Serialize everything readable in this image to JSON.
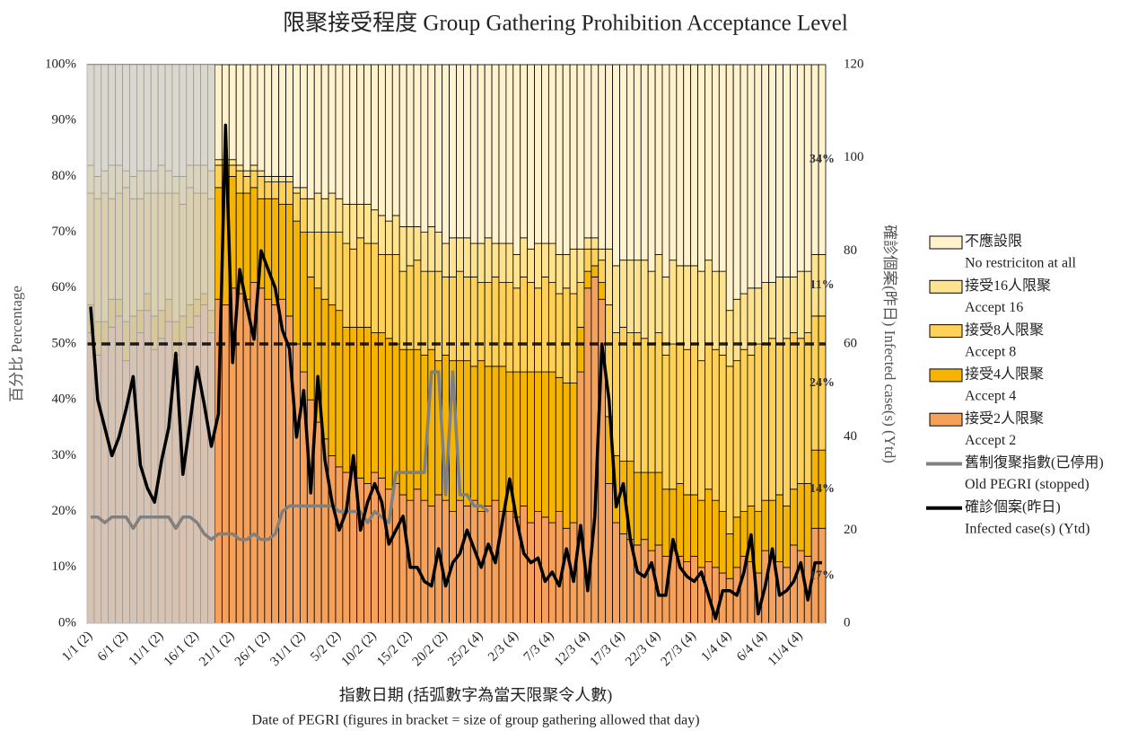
{
  "chart_data": {
    "type": "bar",
    "stacked": true,
    "title": "限聚接受程度 Group Gathering Prohibition Acceptance Level",
    "x_label": "指數日期 (括弧數字為當天限聚令人數)",
    "x_label_en": "Date of PEGRI (figures in bracket = size of group gathering allowed that day)",
    "y_label": "百分比 Percentage",
    "y2_label": "確診個案(昨日) Infected case(s) (Ytd)",
    "categories": [
      "1/1 (2)",
      null,
      null,
      null,
      null,
      "6/1 (2)",
      null,
      null,
      null,
      null,
      "11/1 (2)",
      null,
      null,
      null,
      null,
      "16/1 (2)",
      null,
      null,
      null,
      null,
      "21/1 (2)",
      null,
      null,
      null,
      null,
      "26/1 (2)",
      null,
      null,
      null,
      null,
      "31/1 (2)",
      null,
      null,
      null,
      null,
      "5/2 (2)",
      null,
      null,
      null,
      null,
      "10/2 (2)",
      null,
      null,
      null,
      null,
      "15/2 (2)",
      null,
      null,
      null,
      null,
      "20/2 (2)",
      null,
      null,
      null,
      null,
      "25/2 (4)",
      null,
      null,
      null,
      null,
      "2/3 (4)",
      null,
      null,
      null,
      null,
      "7/3 (4)",
      null,
      null,
      null,
      null,
      "12/3 (4)",
      null,
      null,
      null,
      null,
      "17/3 (4)",
      null,
      null,
      null,
      null,
      "22/3 (4)",
      null,
      null,
      null,
      null,
      "27/3 (4)",
      null,
      null,
      null,
      null,
      "1/4 (4)",
      null,
      null,
      null,
      null,
      "6/4 (4)",
      null,
      null,
      null,
      null,
      "11/4 (4)",
      null,
      null,
      null
    ],
    "ylim": [
      0,
      100
    ],
    "yticks": [
      {
        "value": 0,
        "label": "0%"
      },
      {
        "value": 10,
        "label": "10%"
      },
      {
        "value": 20,
        "label": "20%"
      },
      {
        "value": 30,
        "label": "30%"
      },
      {
        "value": 40,
        "label": "40%"
      },
      {
        "value": 50,
        "label": "50%"
      },
      {
        "value": 60,
        "label": "60%"
      },
      {
        "value": 70,
        "label": "70%"
      },
      {
        "value": 80,
        "label": "80%"
      },
      {
        "value": 90,
        "label": "90%"
      },
      {
        "value": 100,
        "label": "100%"
      }
    ],
    "y2lim": [
      0,
      120
    ],
    "y2ticks": [
      0,
      20,
      40,
      60,
      80,
      100,
      120
    ],
    "grid": false,
    "reference_line": 50,
    "shaded_bars": 18,
    "legend": "right",
    "series": [
      {
        "name": "接受2人限聚",
        "name_en": "Accept  2",
        "type": "bar",
        "color": "#f5a15c",
        "end_label": "17%",
        "values": [
          52,
          48,
          50,
          53,
          55,
          47,
          50,
          52,
          56,
          49,
          51,
          54,
          48,
          50,
          53,
          55,
          57,
          52,
          58,
          57,
          60,
          59,
          58,
          61,
          60,
          58,
          57,
          58,
          55,
          50,
          45,
          40,
          36,
          33,
          30,
          28,
          27,
          28,
          26,
          25,
          27,
          26,
          24,
          25,
          23,
          22,
          24,
          22,
          21,
          23,
          22,
          20,
          22,
          21,
          22,
          20,
          21,
          22,
          20,
          20,
          19,
          21,
          18,
          20,
          19,
          18,
          20,
          17,
          18,
          45,
          60,
          62,
          58,
          25,
          18,
          16,
          15,
          14,
          15,
          13,
          14,
          12,
          13,
          12,
          11,
          12,
          10,
          11,
          10,
          9,
          8,
          10,
          12,
          11,
          9,
          13,
          12,
          11,
          10,
          14,
          13,
          12,
          17,
          17
        ]
      },
      {
        "name": "接受4人限聚",
        "name_en": "Accept  4",
        "type": "bar",
        "color": "#f5b400",
        "end_label": "14%",
        "values": [
          5,
          6,
          4,
          5,
          3,
          7,
          5,
          4,
          3,
          6,
          5,
          4,
          6,
          5,
          4,
          3,
          2,
          4,
          20,
          22,
          20,
          18,
          19,
          17,
          16,
          18,
          19,
          17,
          20,
          22,
          25,
          22,
          24,
          25,
          27,
          28,
          26,
          25,
          27,
          28,
          25,
          26,
          27,
          25,
          26,
          27,
          25,
          26,
          28,
          24,
          26,
          27,
          25,
          26,
          24,
          27,
          25,
          24,
          26,
          25,
          26,
          24,
          27,
          25,
          26,
          27,
          24,
          26,
          25,
          8,
          3,
          2,
          3,
          12,
          12,
          13,
          14,
          13,
          12,
          14,
          13,
          12,
          11,
          13,
          12,
          11,
          12,
          13,
          12,
          11,
          8,
          9,
          8,
          10,
          11,
          9,
          10,
          12,
          11,
          10,
          12,
          13,
          14,
          14
        ]
      },
      {
        "name": "接受8人限聚",
        "name_en": "Accept  8",
        "type": "bar",
        "color": "#ffd257",
        "end_label": "24%",
        "values": [
          20,
          22,
          23,
          18,
          19,
          24,
          21,
          20,
          18,
          22,
          21,
          19,
          23,
          20,
          21,
          19,
          18,
          20,
          4,
          3,
          2,
          4,
          3,
          3,
          4,
          3,
          3,
          4,
          4,
          5,
          6,
          8,
          10,
          12,
          13,
          14,
          15,
          14,
          16,
          15,
          16,
          14,
          15,
          16,
          14,
          15,
          16,
          15,
          14,
          16,
          14,
          15,
          16,
          15,
          16,
          14,
          15,
          16,
          15,
          16,
          15,
          17,
          16,
          15,
          17,
          16,
          15,
          17,
          16,
          8,
          4,
          3,
          4,
          20,
          22,
          24,
          23,
          25,
          24,
          23,
          25,
          24,
          26,
          25,
          26,
          27,
          25,
          26,
          27,
          28,
          30,
          28,
          29,
          27,
          30,
          28,
          29,
          27,
          30,
          28,
          26,
          27,
          24,
          24
        ]
      },
      {
        "name": "接受16人限聚",
        "name_en": "Accept  16",
        "type": "bar",
        "color": "#ffe38f",
        "end_label": "11%",
        "values": [
          5,
          4,
          4,
          6,
          5,
          3,
          4,
          5,
          4,
          4,
          5,
          4,
          3,
          5,
          4,
          5,
          5,
          5,
          1,
          1,
          1,
          1,
          1,
          1,
          1,
          1,
          1,
          1,
          1,
          1,
          2,
          6,
          7,
          6,
          7,
          6,
          7,
          8,
          6,
          7,
          6,
          7,
          6,
          7,
          8,
          7,
          6,
          7,
          8,
          7,
          6,
          7,
          6,
          7,
          6,
          7,
          8,
          6,
          7,
          7,
          6,
          7,
          6,
          8,
          6,
          7,
          7,
          6,
          8,
          6,
          2,
          2,
          2,
          10,
          12,
          12,
          13,
          13,
          14,
          13,
          14,
          14,
          15,
          14,
          15,
          14,
          16,
          15,
          14,
          15,
          10,
          11,
          10,
          12,
          10,
          11,
          10,
          12,
          11,
          10,
          12,
          11,
          11,
          11
        ]
      },
      {
        "name": "不應設限",
        "name_en": "No restriciton at all",
        "type": "bar",
        "color": "#fff2cc",
        "end_label": "34%",
        "values": [
          18,
          20,
          19,
          18,
          18,
          19,
          20,
          19,
          19,
          19,
          18,
          19,
          20,
          20,
          18,
          18,
          18,
          19,
          17,
          17,
          17,
          18,
          19,
          18,
          19,
          20,
          20,
          20,
          20,
          22,
          22,
          24,
          23,
          24,
          23,
          24,
          25,
          25,
          25,
          25,
          26,
          27,
          28,
          27,
          29,
          29,
          29,
          30,
          29,
          30,
          32,
          31,
          31,
          31,
          32,
          32,
          31,
          32,
          32,
          32,
          34,
          31,
          33,
          32,
          32,
          32,
          34,
          34,
          33,
          33,
          31,
          31,
          33,
          33,
          36,
          35,
          35,
          35,
          35,
          37,
          34,
          38,
          35,
          36,
          36,
          36,
          37,
          35,
          37,
          37,
          44,
          42,
          41,
          40,
          40,
          39,
          39,
          38,
          38,
          38,
          37,
          37,
          34,
          34
        ]
      },
      {
        "name": "舊制復聚指數(已停用)",
        "name_en": "Old PEGRI (stopped)",
        "type": "line",
        "color": "#808080",
        "values": [
          19,
          19,
          18,
          19,
          19,
          19,
          17,
          19,
          19,
          19,
          19,
          19,
          17,
          19,
          19,
          18,
          16,
          15,
          16,
          16,
          16,
          15,
          15,
          16,
          15,
          15,
          16,
          20,
          21,
          21,
          21,
          21,
          21,
          21,
          21,
          20,
          20,
          20,
          20,
          18,
          20,
          19,
          18,
          27,
          27,
          27,
          27,
          27,
          45,
          45,
          23,
          45,
          23,
          23,
          21,
          21,
          20,
          null,
          null,
          null,
          null,
          null,
          null,
          null,
          null,
          null,
          null,
          null,
          null,
          null,
          null,
          null,
          null,
          null,
          null,
          null,
          null,
          null,
          null,
          null,
          null,
          null,
          null,
          null,
          null,
          null,
          null,
          null,
          null,
          null,
          null,
          null,
          null,
          null,
          null,
          null,
          null,
          null,
          null,
          null,
          null,
          null,
          null,
          null
        ]
      },
      {
        "name": "確診個案(昨日)",
        "name_en": "Infected case(s) (Ytd)",
        "type": "line",
        "axis": "y2",
        "color": "#000000",
        "values": [
          68,
          48,
          42,
          36,
          40,
          46,
          53,
          34,
          29,
          26,
          35,
          42,
          58,
          32,
          43,
          55,
          47,
          38,
          45,
          107,
          56,
          76,
          68,
          61,
          80,
          76,
          72,
          63,
          59,
          40,
          50,
          28,
          53,
          35,
          26,
          20,
          24,
          36,
          20,
          26,
          30,
          26,
          17,
          20,
          23,
          12,
          12,
          9,
          8,
          16,
          8,
          13,
          15,
          20,
          16,
          12,
          17,
          13,
          22,
          31,
          22,
          15,
          13,
          14,
          9,
          11,
          8,
          16,
          9,
          21,
          7,
          23,
          60,
          48,
          25,
          30,
          18,
          11,
          10,
          13,
          6,
          6,
          18,
          12,
          10,
          9,
          11,
          6,
          1,
          7,
          7,
          6,
          11,
          19,
          2,
          8,
          16,
          6,
          7,
          9,
          13,
          5,
          13,
          13
        ]
      }
    ]
  }
}
